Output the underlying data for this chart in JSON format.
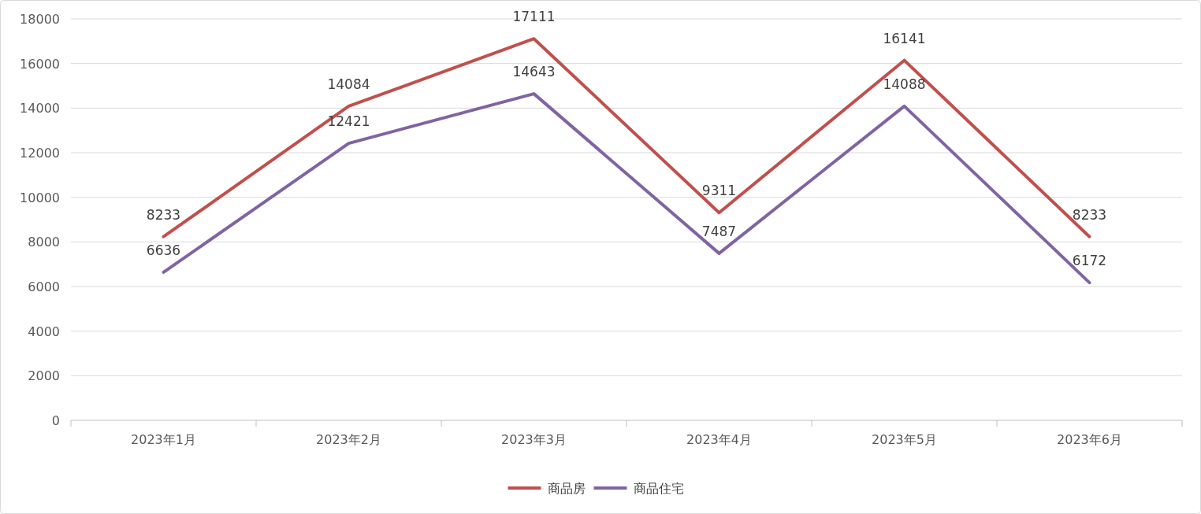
{
  "chart_data": {
    "type": "line",
    "categories": [
      "2023年1月",
      "2023年2月",
      "2023年3月",
      "2023年4月",
      "2023年5月",
      "2023年6月"
    ],
    "series": [
      {
        "name": "商品房",
        "color": "#c0504d",
        "values": [
          8233,
          14084,
          17111,
          9311,
          16141,
          8233
        ]
      },
      {
        "name": "商品住宅",
        "color": "#8064a2",
        "values": [
          6636,
          12421,
          14643,
          7487,
          14088,
          6172
        ]
      }
    ],
    "ylim": [
      0,
      18000
    ],
    "yticks": [
      0,
      2000,
      4000,
      6000,
      8000,
      10000,
      12000,
      14000,
      16000,
      18000
    ],
    "grid": "y",
    "legend": "bottom",
    "data_labels": true,
    "marker": "none",
    "line_style": "solid"
  }
}
